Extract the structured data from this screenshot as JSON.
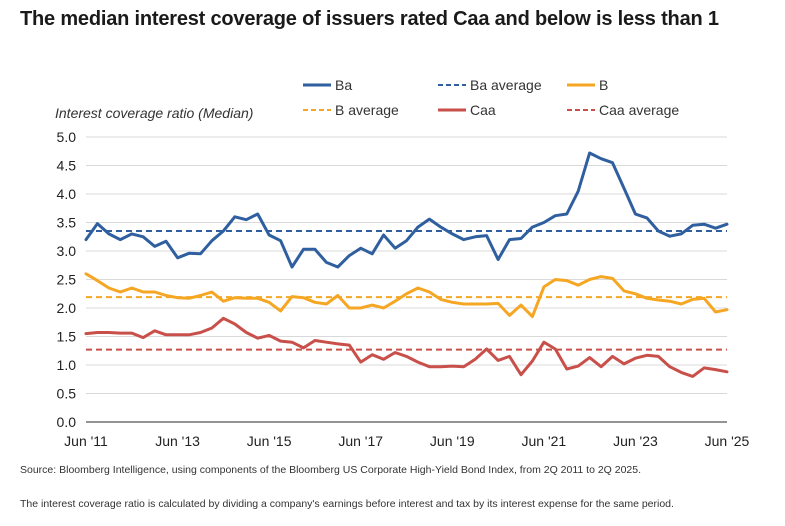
{
  "headline": "The median interest coverage of issuers rated Caa and below is less than 1",
  "source": "Source: Bloomberg Intelligence, using components of the Bloomberg US Corporate High-Yield Bond Index, from 2Q 2011 to 2Q 2025.",
  "note": "The interest coverage ratio is calculated by dividing a company's earnings before interest and tax by its interest expense for the same period.",
  "colors": {
    "ba": "#2f5f9e",
    "b": "#f5a623",
    "caa": "#c9504a"
  },
  "chart_data": {
    "type": "line",
    "title": "",
    "ylabel": "Interest coverage ratio (Median)",
    "xlabel": "",
    "ylim": [
      0,
      5
    ],
    "yticks": [
      "0.0",
      "0.5",
      "1.0",
      "1.5",
      "2.0",
      "2.5",
      "3.0",
      "3.5",
      "4.0",
      "4.5",
      "5.0"
    ],
    "xticks": [
      "Jun '11",
      "Jun '13",
      "Jun '15",
      "Jun '17",
      "Jun '19",
      "Jun '21",
      "Jun '23",
      "Jun '25"
    ],
    "grid": "horizontal",
    "legend": "top",
    "x_start": "2Q 2011",
    "x_end": "2Q 2025",
    "series": [
      {
        "name": "Ba",
        "style": "solid",
        "color": "#2f5f9e",
        "values": [
          3.2,
          3.48,
          3.3,
          3.2,
          3.3,
          3.25,
          3.08,
          3.17,
          2.88,
          2.96,
          2.95,
          3.18,
          3.35,
          3.6,
          3.55,
          3.65,
          3.28,
          3.18,
          2.72,
          3.03,
          3.03,
          2.8,
          2.72,
          2.92,
          3.05,
          2.95,
          3.28,
          3.05,
          3.18,
          3.42,
          3.56,
          3.42,
          3.3,
          3.2,
          3.25,
          3.27,
          2.85,
          3.2,
          3.22,
          3.42,
          3.5,
          3.62,
          3.65,
          4.05,
          4.72,
          4.62,
          4.55,
          4.1,
          3.65,
          3.58,
          3.35,
          3.26,
          3.3,
          3.45,
          3.47,
          3.4,
          3.47
        ]
      },
      {
        "name": "Ba average",
        "style": "dashed",
        "color": "#2f5f9e",
        "constant": 3.35
      },
      {
        "name": "B",
        "style": "solid",
        "color": "#f5a623",
        "values": [
          2.6,
          2.48,
          2.35,
          2.28,
          2.35,
          2.28,
          2.28,
          2.22,
          2.18,
          2.17,
          2.22,
          2.28,
          2.12,
          2.18,
          2.17,
          2.17,
          2.1,
          1.95,
          2.2,
          2.18,
          2.1,
          2.07,
          2.22,
          2.0,
          2.0,
          2.05,
          2.0,
          2.12,
          2.25,
          2.35,
          2.28,
          2.15,
          2.1,
          2.07,
          2.07,
          2.07,
          2.08,
          1.87,
          2.05,
          1.85,
          2.37,
          2.5,
          2.48,
          2.4,
          2.5,
          2.55,
          2.52,
          2.3,
          2.25,
          2.17,
          2.14,
          2.12,
          2.07,
          2.15,
          2.17,
          1.93,
          1.97
        ]
      },
      {
        "name": "B average",
        "style": "dashed",
        "color": "#f5a623",
        "constant": 2.19
      },
      {
        "name": "Caa",
        "style": "solid",
        "color": "#c9504a",
        "values": [
          1.55,
          1.57,
          1.57,
          1.56,
          1.56,
          1.48,
          1.6,
          1.53,
          1.53,
          1.53,
          1.57,
          1.65,
          1.82,
          1.72,
          1.57,
          1.47,
          1.52,
          1.42,
          1.4,
          1.3,
          1.43,
          1.4,
          1.37,
          1.35,
          1.05,
          1.18,
          1.1,
          1.22,
          1.15,
          1.05,
          0.97,
          0.97,
          0.98,
          0.97,
          1.1,
          1.28,
          1.08,
          1.15,
          0.83,
          1.07,
          1.4,
          1.28,
          0.93,
          0.98,
          1.13,
          0.97,
          1.15,
          1.02,
          1.12,
          1.17,
          1.15,
          0.97,
          0.87,
          0.8,
          0.95,
          0.92,
          0.88
        ]
      },
      {
        "name": "Caa average",
        "style": "dashed",
        "color": "#c9504a",
        "constant": 1.27
      }
    ]
  }
}
